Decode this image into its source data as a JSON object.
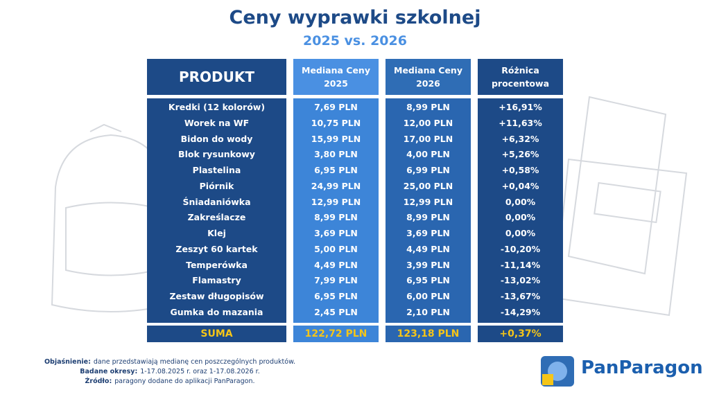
{
  "header": {
    "title": "Ceny wyprawki szkolnej",
    "subtitle": "2025 vs. 2026"
  },
  "table": {
    "columns": [
      "PRODUKT",
      "Mediana Ceny 2025",
      "Mediana Ceny 2026",
      "Różnica procentowa"
    ],
    "rows": [
      [
        "Kredki (12 kolorów)",
        "7,69 PLN",
        "8,99 PLN",
        "+16,91%"
      ],
      [
        "Worek na WF",
        "10,75 PLN",
        "12,00 PLN",
        "+11,63%"
      ],
      [
        "Bidon do wody",
        "15,99 PLN",
        "17,00 PLN",
        "+6,32%"
      ],
      [
        "Blok rysunkowy",
        "3,80 PLN",
        "4,00 PLN",
        "+5,26%"
      ],
      [
        "Plastelina",
        "6,95 PLN",
        "6,99 PLN",
        "+0,58%"
      ],
      [
        "Piórnik",
        "24,99 PLN",
        "25,00 PLN",
        "+0,04%"
      ],
      [
        "Śniadaniówka",
        "12,99 PLN",
        "12,99 PLN",
        "0,00%"
      ],
      [
        "Zakreślacze",
        "8,99 PLN",
        "8,99 PLN",
        "0,00%"
      ],
      [
        "Klej",
        "3,69 PLN",
        "3,69 PLN",
        "0,00%"
      ],
      [
        "Zeszyt 60 kartek",
        "5,00 PLN",
        "4,49 PLN",
        "-10,20%"
      ],
      [
        "Temperówka",
        "4,49 PLN",
        "3,99 PLN",
        "-11,14%"
      ],
      [
        "Flamastry",
        "7,99 PLN",
        "6,95 PLN",
        "-13,02%"
      ],
      [
        "Zestaw długopisów",
        "6,95 PLN",
        "6,00 PLN",
        "-13,67%"
      ],
      [
        "Gumka do mazania",
        "2,45 PLN",
        "2,10 PLN",
        "-14,29%"
      ]
    ],
    "total": [
      "SUMA",
      "122,72 PLN",
      "123,18 PLN",
      "+0,37%"
    ]
  },
  "notes": [
    {
      "label": "Objaśnienie:",
      "text": "dane przedstawiają medianę cen poszczególnych produktów."
    },
    {
      "label": "Badane okresy:",
      "text": "1-17.08.2025 r. oraz 1-17.08.2026 r."
    },
    {
      "label": "Źródło:",
      "text": "paragony dodane do aplikacji PanParagon."
    }
  ],
  "logo": "PanParagon"
}
